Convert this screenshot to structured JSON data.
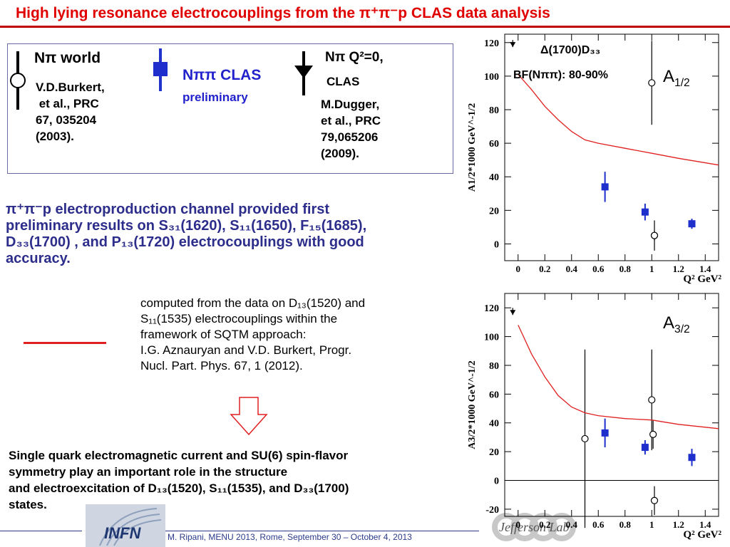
{
  "header": {
    "title_main": "High lying resonance electrocouplings from the ",
    "title_sym": "π⁺π⁻p CLAS data analysis"
  },
  "legend": {
    "npi_world_label": "Nπ world",
    "npi_world_ref": [
      "V.D.Burkert,",
      " et al., PRC",
      "67, 035204",
      "(2003)."
    ],
    "npipi_label": "Nππ CLAS",
    "npipi_sub": "preliminary",
    "npi_q2_label": "Nπ Q²=0,",
    "npi_q2_clas": "CLAS",
    "npi_q2_ref": [
      "M.Dugger,",
      "et al., PRC",
      "79,065206",
      "(2009)."
    ]
  },
  "body": {
    "lines": [
      "π⁺π⁻p electroproduction channel  provided first",
      "preliminary results  on  S₃₁(1620), S₁₁(1650), F₁₅(1685),",
      "D₃₃(1700) , and P₁₃(1720)  electrocouplings with good",
      "accuracy."
    ]
  },
  "computed": {
    "lines": [
      "computed from the data on D₁₃(1520) and",
      "S₁₁(1535) electrocouplings within the",
      "framework of SQTM  approach:",
      "I.G. Aznauryan and V.D. Burkert, Progr.",
      "Nucl. Part. Phys. 67, 1 (2012)."
    ]
  },
  "conclusion": {
    "lines": [
      "Single quark electromagnetic current  and SU(6)  spin-flavor",
      "symmetry play  an important role in the structure",
      "and electroexcitation of  D₁₃(1520), S₁₁(1535), and D₃₃(1700)",
      "states."
    ]
  },
  "footer": {
    "text": "M. Ripani, MENU 2013, Rome, September 30 – October 4, 2013",
    "infn": "INFN",
    "jlab": "Jefferson Lab"
  },
  "charts": {
    "resonance": "Δ(1700)D₃₃",
    "bf": "BF(Nππ): 80-90%",
    "amp_top": "A1/2",
    "amp_bottom": "A3/2"
  },
  "colors": {
    "title": "#e00000",
    "body": "#2d2d8c",
    "npipi": "#2222cc",
    "curve": "#e02020"
  },
  "chart_data": [
    {
      "type": "scatter",
      "title": "A1/2",
      "xlabel": "Q² GeV²",
      "ylabel": "A1/2*1000 GeV^-1/2",
      "xlim": [
        -0.1,
        1.5
      ],
      "ylim": [
        -10,
        125
      ],
      "xticks": [
        "0",
        "0.2",
        "0.4",
        "0.6",
        "0.8",
        "1",
        "1.2",
        "1.4"
      ],
      "yticks": [
        "0",
        "20",
        "40",
        "60",
        "80",
        "100",
        "120"
      ],
      "series": [
        {
          "kind": "Nππ CLAS",
          "points": [
            {
              "x": 0.65,
              "y": 34,
              "err": 9
            },
            {
              "x": 0.95,
              "y": 19,
              "err": 5
            },
            {
              "x": 1.3,
              "y": 12,
              "err": 3
            }
          ]
        },
        {
          "kind": "Nπ world",
          "points": [
            {
              "x": 1.0,
              "y": 96,
              "err": 25
            },
            {
              "x": 1.02,
              "y": 5,
              "err": 9
            },
            {
              "x": 1.02,
              "y": 5,
              "err": 3
            }
          ]
        },
        {
          "kind": "Nπ Q²=0 CLAS",
          "points": [
            {
              "x": -0.04,
              "y": 119
            }
          ]
        },
        {
          "kind": "SQTM",
          "curve": [
            {
              "x": 0,
              "y": 101
            },
            {
              "x": 0.1,
              "y": 92
            },
            {
              "x": 0.2,
              "y": 82
            },
            {
              "x": 0.3,
              "y": 74
            },
            {
              "x": 0.4,
              "y": 67
            },
            {
              "x": 0.5,
              "y": 62
            },
            {
              "x": 0.6,
              "y": 60
            },
            {
              "x": 0.8,
              "y": 57
            },
            {
              "x": 1.0,
              "y": 54
            },
            {
              "x": 1.2,
              "y": 51
            },
            {
              "x": 1.5,
              "y": 47
            }
          ]
        }
      ]
    },
    {
      "type": "scatter",
      "title": "A3/2",
      "xlabel": "Q² GeV²",
      "ylabel": "A3/2*1000 GeV^-1/2",
      "xlim": [
        -0.1,
        1.5
      ],
      "ylim": [
        -25,
        130
      ],
      "xticks": [
        "0",
        "0.2",
        "0.4",
        "0.6",
        "0.8",
        "1",
        "1.2",
        "1.4"
      ],
      "yticks": [
        "-20",
        "0",
        "20",
        "40",
        "60",
        "80",
        "100",
        "120"
      ],
      "series": [
        {
          "kind": "Nππ CLAS",
          "points": [
            {
              "x": 0.65,
              "y": 33,
              "err": 10
            },
            {
              "x": 0.95,
              "y": 23,
              "err": 5
            },
            {
              "x": 1.3,
              "y": 16,
              "err": 6
            }
          ]
        },
        {
          "kind": "Nπ world",
          "points": [
            {
              "x": 0.5,
              "y": 29,
              "err": 62
            },
            {
              "x": 1.0,
              "y": 56,
              "err": 35
            },
            {
              "x": 1.01,
              "y": 32,
              "err": 10
            },
            {
              "x": 1.02,
              "y": -14,
              "err": 10
            }
          ]
        },
        {
          "kind": "Nπ Q²=0 CLAS",
          "points": [
            {
              "x": -0.04,
              "y": 117
            }
          ]
        },
        {
          "kind": "SQTM",
          "curve": [
            {
              "x": 0,
              "y": 108
            },
            {
              "x": 0.1,
              "y": 88
            },
            {
              "x": 0.2,
              "y": 72
            },
            {
              "x": 0.3,
              "y": 59
            },
            {
              "x": 0.4,
              "y": 51
            },
            {
              "x": 0.5,
              "y": 47
            },
            {
              "x": 0.6,
              "y": 45
            },
            {
              "x": 0.8,
              "y": 43
            },
            {
              "x": 1.0,
              "y": 42
            },
            {
              "x": 1.2,
              "y": 39
            },
            {
              "x": 1.5,
              "y": 36
            }
          ]
        }
      ]
    }
  ]
}
